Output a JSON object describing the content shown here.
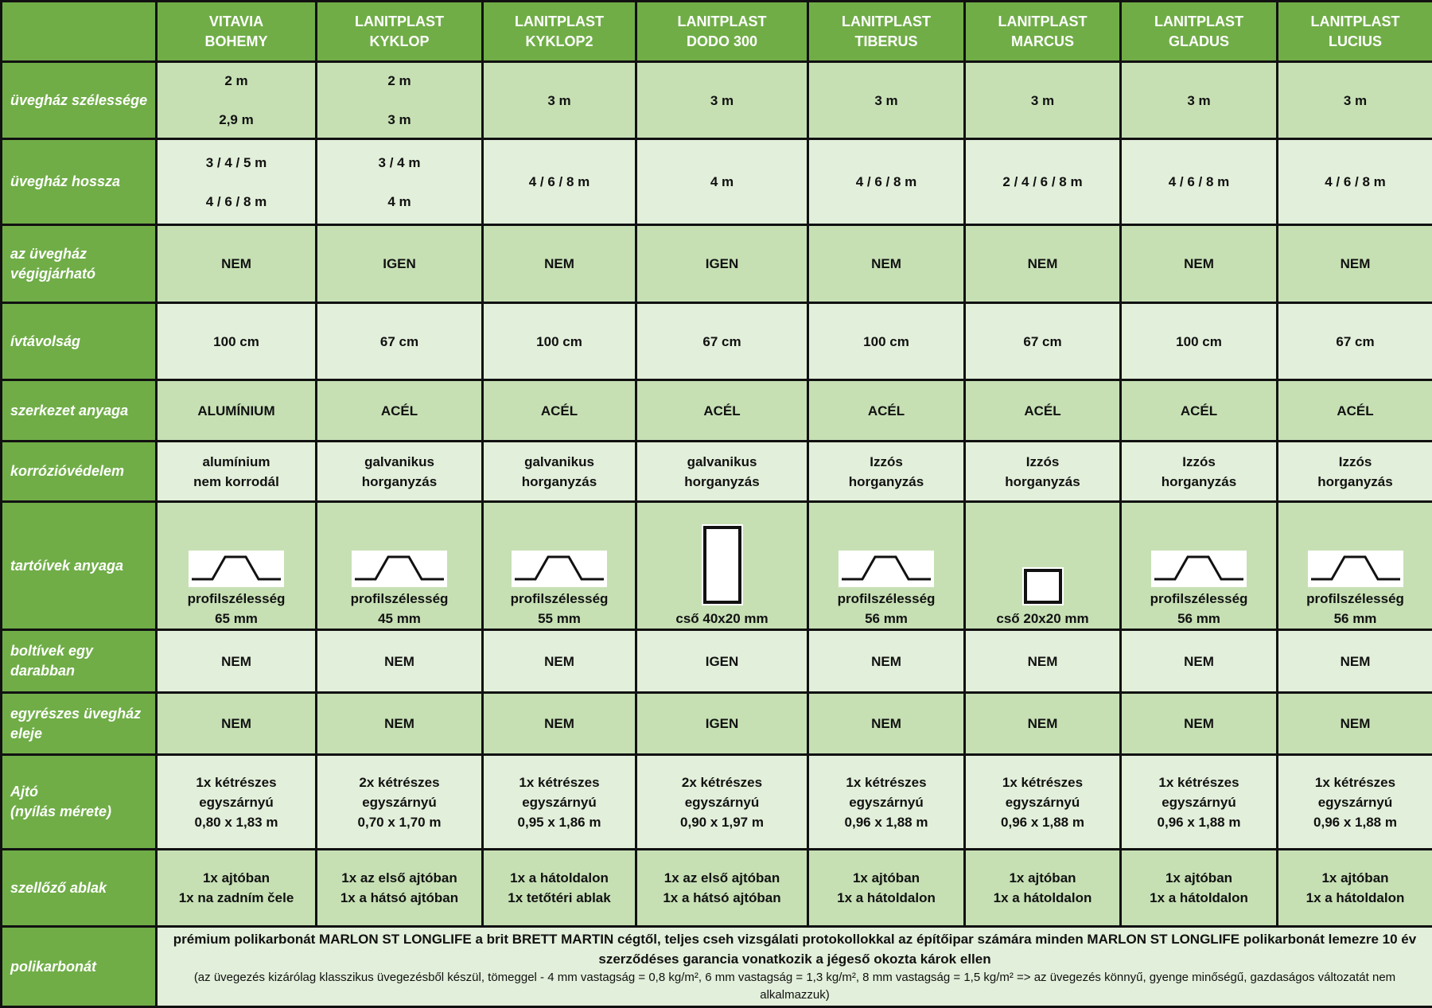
{
  "colors": {
    "header": "#70ad47",
    "dark_row": "#c6e0b4",
    "light_row": "#e2efda"
  },
  "columns": [
    [
      "VITAVIA",
      "BOHEMY"
    ],
    [
      "LANITPLAST",
      "KYKLOP"
    ],
    [
      "LANITPLAST",
      "KYKLOP2"
    ],
    [
      "LANITPLAST",
      "DODO 300"
    ],
    [
      "LANITPLAST",
      "TIBERUS"
    ],
    [
      "LANITPLAST",
      "MARCUS"
    ],
    [
      "LANITPLAST",
      "GLADUS"
    ],
    [
      "LANITPLAST",
      "LUCIUS"
    ]
  ],
  "rows": [
    {
      "label": "üvegház szélessége",
      "shade": "dark",
      "gap": true,
      "cells": [
        [
          "2 m",
          "2,9 m"
        ],
        [
          "2 m",
          "3 m"
        ],
        [
          "3 m"
        ],
        [
          "3 m"
        ],
        [
          "3 m"
        ],
        [
          "3 m"
        ],
        [
          "3 m"
        ],
        [
          "3 m"
        ]
      ]
    },
    {
      "label": "üvegház hossza",
      "shade": "light",
      "gap": true,
      "cells": [
        [
          "3 / 4 / 5 m",
          "4 / 6 / 8 m"
        ],
        [
          "3 / 4 m",
          "4 m"
        ],
        [
          "4 / 6 / 8 m"
        ],
        [
          "4 m"
        ],
        [
          "4 / 6 / 8 m"
        ],
        [
          "2 / 4 / 6 / 8 m"
        ],
        [
          "4 / 6 / 8 m"
        ],
        [
          "4 / 6 / 8 m"
        ]
      ]
    },
    {
      "label": "az üvegház végigjárható",
      "shade": "dark",
      "cells": [
        [
          "NEM"
        ],
        [
          "IGEN"
        ],
        [
          "NEM"
        ],
        [
          "IGEN"
        ],
        [
          "NEM"
        ],
        [
          "NEM"
        ],
        [
          "NEM"
        ],
        [
          "NEM"
        ]
      ]
    },
    {
      "label": "ívtávolság",
      "shade": "light",
      "cells": [
        [
          "100 cm"
        ],
        [
          "67 cm"
        ],
        [
          "100 cm"
        ],
        [
          "67 cm"
        ],
        [
          "100 cm"
        ],
        [
          "67 cm"
        ],
        [
          "100 cm"
        ],
        [
          "67 cm"
        ]
      ]
    },
    {
      "label": "szerkezet anyaga",
      "shade": "dark",
      "cells": [
        [
          "ALUMÍNIUM"
        ],
        [
          "ACÉL"
        ],
        [
          "ACÉL"
        ],
        [
          "ACÉL"
        ],
        [
          "ACÉL"
        ],
        [
          "ACÉL"
        ],
        [
          "ACÉL"
        ],
        [
          "ACÉL"
        ]
      ]
    },
    {
      "label": "korrózióvédelem",
      "shade": "light",
      "cells": [
        [
          "alumínium",
          "nem korrodál"
        ],
        [
          "galvanikus",
          "horganyzás"
        ],
        [
          "galvanikus",
          "horganyzás"
        ],
        [
          "galvanikus",
          "horganyzás"
        ],
        [
          "Izzós",
          "horganyzás"
        ],
        [
          "Izzós",
          "horganyzás"
        ],
        [
          "Izzós",
          "horganyzás"
        ],
        [
          "Izzós",
          "horganyzás"
        ]
      ]
    },
    {
      "label": "tartóívek anyaga",
      "shade": "dark",
      "icons": [
        "profile-icon",
        "profile-icon",
        "profile-icon",
        "tube-40x20-icon",
        "profile-icon",
        "tube-20x20-icon",
        "profile-icon",
        "profile-icon"
      ],
      "cells": [
        [
          "profilszélesség",
          "65 mm"
        ],
        [
          "profilszélesség",
          "45 mm"
        ],
        [
          "profilszélesség",
          "55 mm"
        ],
        [
          "cső 40x20 mm"
        ],
        [
          "profilszélesség",
          "56 mm"
        ],
        [
          "cső 20x20 mm"
        ],
        [
          "profilszélesség",
          "56 mm"
        ],
        [
          "profilszélesség",
          "56 mm"
        ]
      ]
    },
    {
      "label": "boltívek egy darabban",
      "shade": "light",
      "cells": [
        [
          "NEM"
        ],
        [
          "NEM"
        ],
        [
          "NEM"
        ],
        [
          "IGEN"
        ],
        [
          "NEM"
        ],
        [
          "NEM"
        ],
        [
          "NEM"
        ],
        [
          "NEM"
        ]
      ]
    },
    {
      "label": "egyrészes üvegház eleje",
      "shade": "dark",
      "cells": [
        [
          "NEM"
        ],
        [
          "NEM"
        ],
        [
          "NEM"
        ],
        [
          "IGEN"
        ],
        [
          "NEM"
        ],
        [
          "NEM"
        ],
        [
          "NEM"
        ],
        [
          "NEM"
        ]
      ]
    },
    {
      "label": "Ajtó (nyílás mérete)",
      "label_lines": [
        "Ajtó",
        "(nyílás mérete)"
      ],
      "shade": "light",
      "cells": [
        [
          "1x kétrészes",
          "egyszárnyú",
          "0,80 x 1,83 m"
        ],
        [
          "2x kétrészes",
          "egyszárnyú",
          "0,70 x 1,70 m"
        ],
        [
          "1x kétrészes",
          "egyszárnyú",
          "0,95 x 1,86 m"
        ],
        [
          "2x kétrészes",
          "egyszárnyú",
          "0,90 x 1,97 m"
        ],
        [
          "1x kétrészes",
          "egyszárnyú",
          "0,96 x 1,88 m"
        ],
        [
          "1x kétrészes",
          "egyszárnyú",
          "0,96 x 1,88 m"
        ],
        [
          "1x kétrészes",
          "egyszárnyú",
          "0,96 x 1,88 m"
        ],
        [
          "1x kétrészes",
          "egyszárnyú",
          "0,96 x 1,88 m"
        ]
      ]
    },
    {
      "label": "szellőző ablak",
      "shade": "dark",
      "cells": [
        [
          "1x ajtóban",
          "1x na zadním čele"
        ],
        [
          "1x az első ajtóban",
          "1x a hátsó ajtóban"
        ],
        [
          "1x a hátoldalon",
          "1x tetőtéri ablak"
        ],
        [
          "1x az első ajtóban",
          "1x a hátsó ajtóban"
        ],
        [
          "1x ajtóban",
          "1x a hátoldalon"
        ],
        [
          "1x ajtóban",
          "1x a hátoldalon"
        ],
        [
          "1x ajtóban",
          "1x a hátoldalon"
        ],
        [
          "1x ajtóban",
          "1x a hátoldalon"
        ]
      ]
    }
  ],
  "polycarbonate": {
    "label": "polikarbonát",
    "main": "prémium polikarbonát MARLON ST LONGLIFE a brit BRETT MARTIN cégtől, teljes cseh vizsgálati protokollokkal az építőipar számára minden MARLON ST LONGLIFE polikarbonát lemezre 10 év szerződéses garancia vonatkozik a jégeső okozta károk ellen",
    "note": "(az üvegezés kizárólag klasszikus üvegezésből készül, tömeggel - 4 mm vastagság = 0,8 kg/m², 6 mm vastagság = 1,3 kg/m², 8 mm vastagság = 1,5 kg/m² => az üvegezés könnyű, gyenge minőségű, gazdaságos változatát nem alkalmazzuk)"
  }
}
